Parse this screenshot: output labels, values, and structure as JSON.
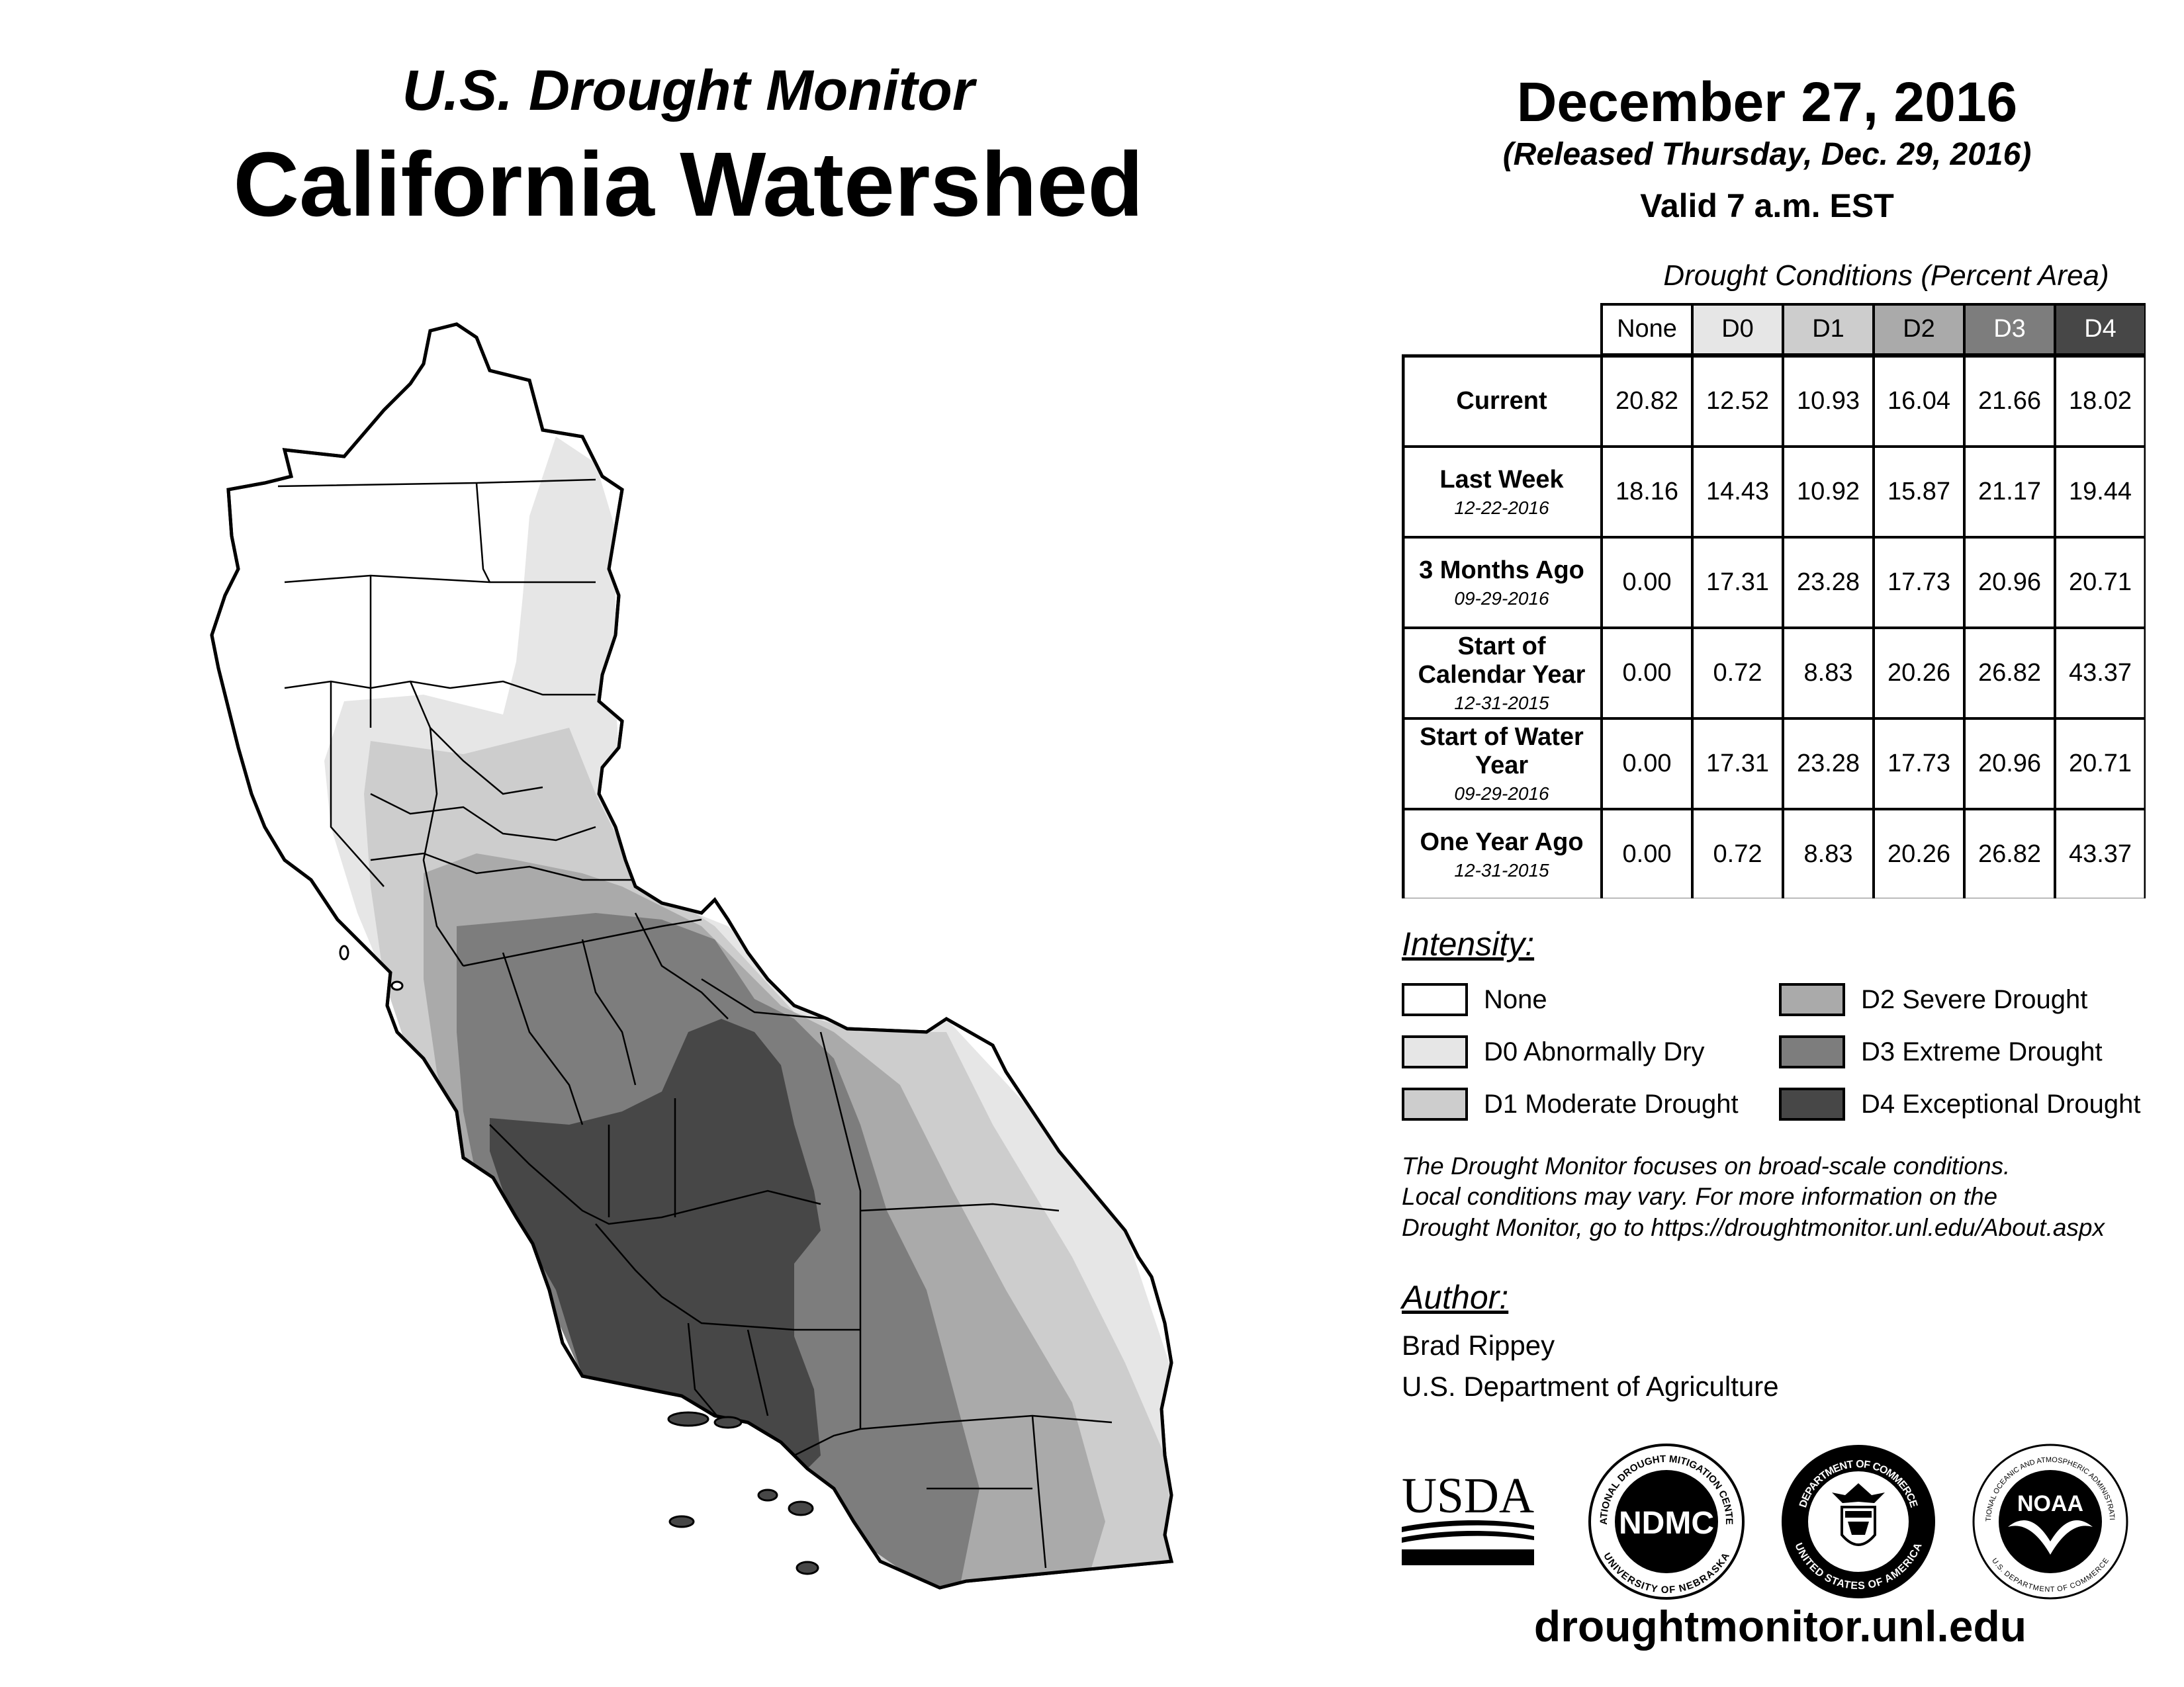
{
  "header": {
    "subtitle": "U.S. Drought Monitor",
    "title": "California Watershed",
    "date": "December 27, 2016",
    "released": "(Released Thursday, Dec. 29, 2016)",
    "valid": "Valid 7 a.m. EST"
  },
  "table": {
    "title": "Drought Conditions (Percent Area)",
    "columns": [
      "None",
      "D0",
      "D1",
      "D2",
      "D3",
      "D4"
    ],
    "column_colors": [
      "#ffffff",
      "#e6e6e6",
      "#cdcdcd",
      "#aaaaaa",
      "#7d7d7d",
      "#474747"
    ],
    "column_text_colors": [
      "#000000",
      "#000000",
      "#000000",
      "#000000",
      "#ffffff",
      "#ffffff"
    ],
    "rows": [
      {
        "label": "Current",
        "sublabel": "",
        "values": [
          "20.82",
          "12.52",
          "10.93",
          "16.04",
          "21.66",
          "18.02"
        ]
      },
      {
        "label": "Last Week",
        "sublabel": "12-22-2016",
        "values": [
          "18.16",
          "14.43",
          "10.92",
          "15.87",
          "21.17",
          "19.44"
        ]
      },
      {
        "label": "3 Months Ago",
        "sublabel": "09-29-2016",
        "values": [
          "0.00",
          "17.31",
          "23.28",
          "17.73",
          "20.96",
          "20.71"
        ]
      },
      {
        "label": "Start of Calendar Year",
        "sublabel": "12-31-2015",
        "values": [
          "0.00",
          "0.72",
          "8.83",
          "20.26",
          "26.82",
          "43.37"
        ]
      },
      {
        "label": "Start of Water Year",
        "sublabel": "09-29-2016",
        "values": [
          "0.00",
          "17.31",
          "23.28",
          "17.73",
          "20.96",
          "20.71"
        ]
      },
      {
        "label": "One Year Ago",
        "sublabel": "12-31-2015",
        "values": [
          "0.00",
          "0.72",
          "8.83",
          "20.26",
          "26.82",
          "43.37"
        ]
      }
    ]
  },
  "legend": {
    "title": "Intensity:",
    "items": [
      {
        "label": "None",
        "color": "#ffffff"
      },
      {
        "label": "D0 Abnormally Dry",
        "color": "#e6e6e6"
      },
      {
        "label": "D1 Moderate Drought",
        "color": "#cdcdcd"
      },
      {
        "label": "D2 Severe Drought",
        "color": "#aaaaaa"
      },
      {
        "label": "D3 Extreme Drought",
        "color": "#7d7d7d"
      },
      {
        "label": "D4 Exceptional Drought",
        "color": "#474747"
      }
    ]
  },
  "note": {
    "line1": "The Drought Monitor focuses on broad-scale conditions.",
    "line2": "Local conditions may vary. For more information on the",
    "line3": "Drought Monitor, go to https://droughtmonitor.unl.edu/About.aspx"
  },
  "author": {
    "title": "Author:",
    "name": "Brad Rippey",
    "org": "U.S. Department of Agriculture"
  },
  "logos": {
    "usda": "USDA",
    "ndmc": "NDMC",
    "ndmc_ring_top": "NATIONAL DROUGHT MITIGATION CENTER",
    "ndmc_ring_bottom": "UNIVERSITY OF NEBRASKA",
    "commerce_ring_top": "DEPARTMENT OF COMMERCE",
    "commerce_ring_bottom": "UNITED STATES OF AMERICA",
    "noaa": "NOAA",
    "noaa_ring_top": "NATIONAL OCEANIC AND ATMOSPHERIC ADMINISTRATION",
    "noaa_ring_bottom": "U.S. DEPARTMENT OF COMMERCE"
  },
  "url": "droughtmonitor.unl.edu"
}
